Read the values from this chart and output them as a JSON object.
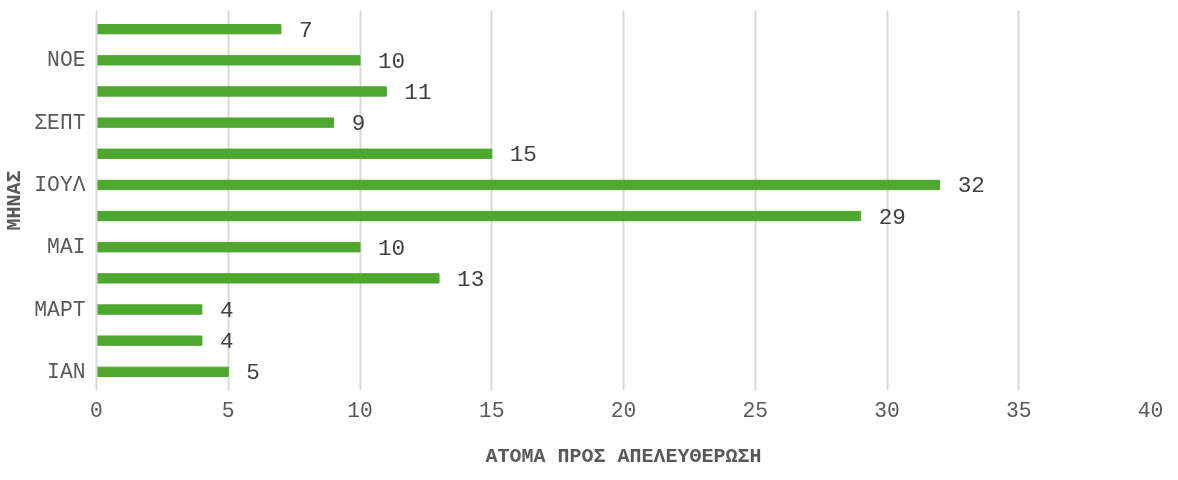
{
  "chart_data": {
    "type": "bar",
    "orientation": "horizontal",
    "xlabel": "ΑΤΟΜΑ ΠΡΟΣ ΑΠΕΛΕΥΘΕΡΩΣΗ",
    "ylabel": "ΜΗΝΑΣ",
    "categories": [
      null,
      "ΝΟΕ",
      null,
      "ΣΕΠΤ",
      null,
      "ΙΟΥΛ",
      null,
      "ΜΑΙ",
      null,
      "ΜΑΡΤ",
      null,
      "ΙΑΝ"
    ],
    "values": [
      7,
      10,
      11,
      9,
      15,
      32,
      29,
      10,
      13,
      4,
      4,
      5
    ],
    "color": "#4ea72e",
    "xlim": [
      0,
      40
    ],
    "xticks": [
      0,
      5,
      10,
      15,
      20,
      25,
      30,
      35,
      40
    ],
    "grid": "x",
    "data_labels": true
  }
}
